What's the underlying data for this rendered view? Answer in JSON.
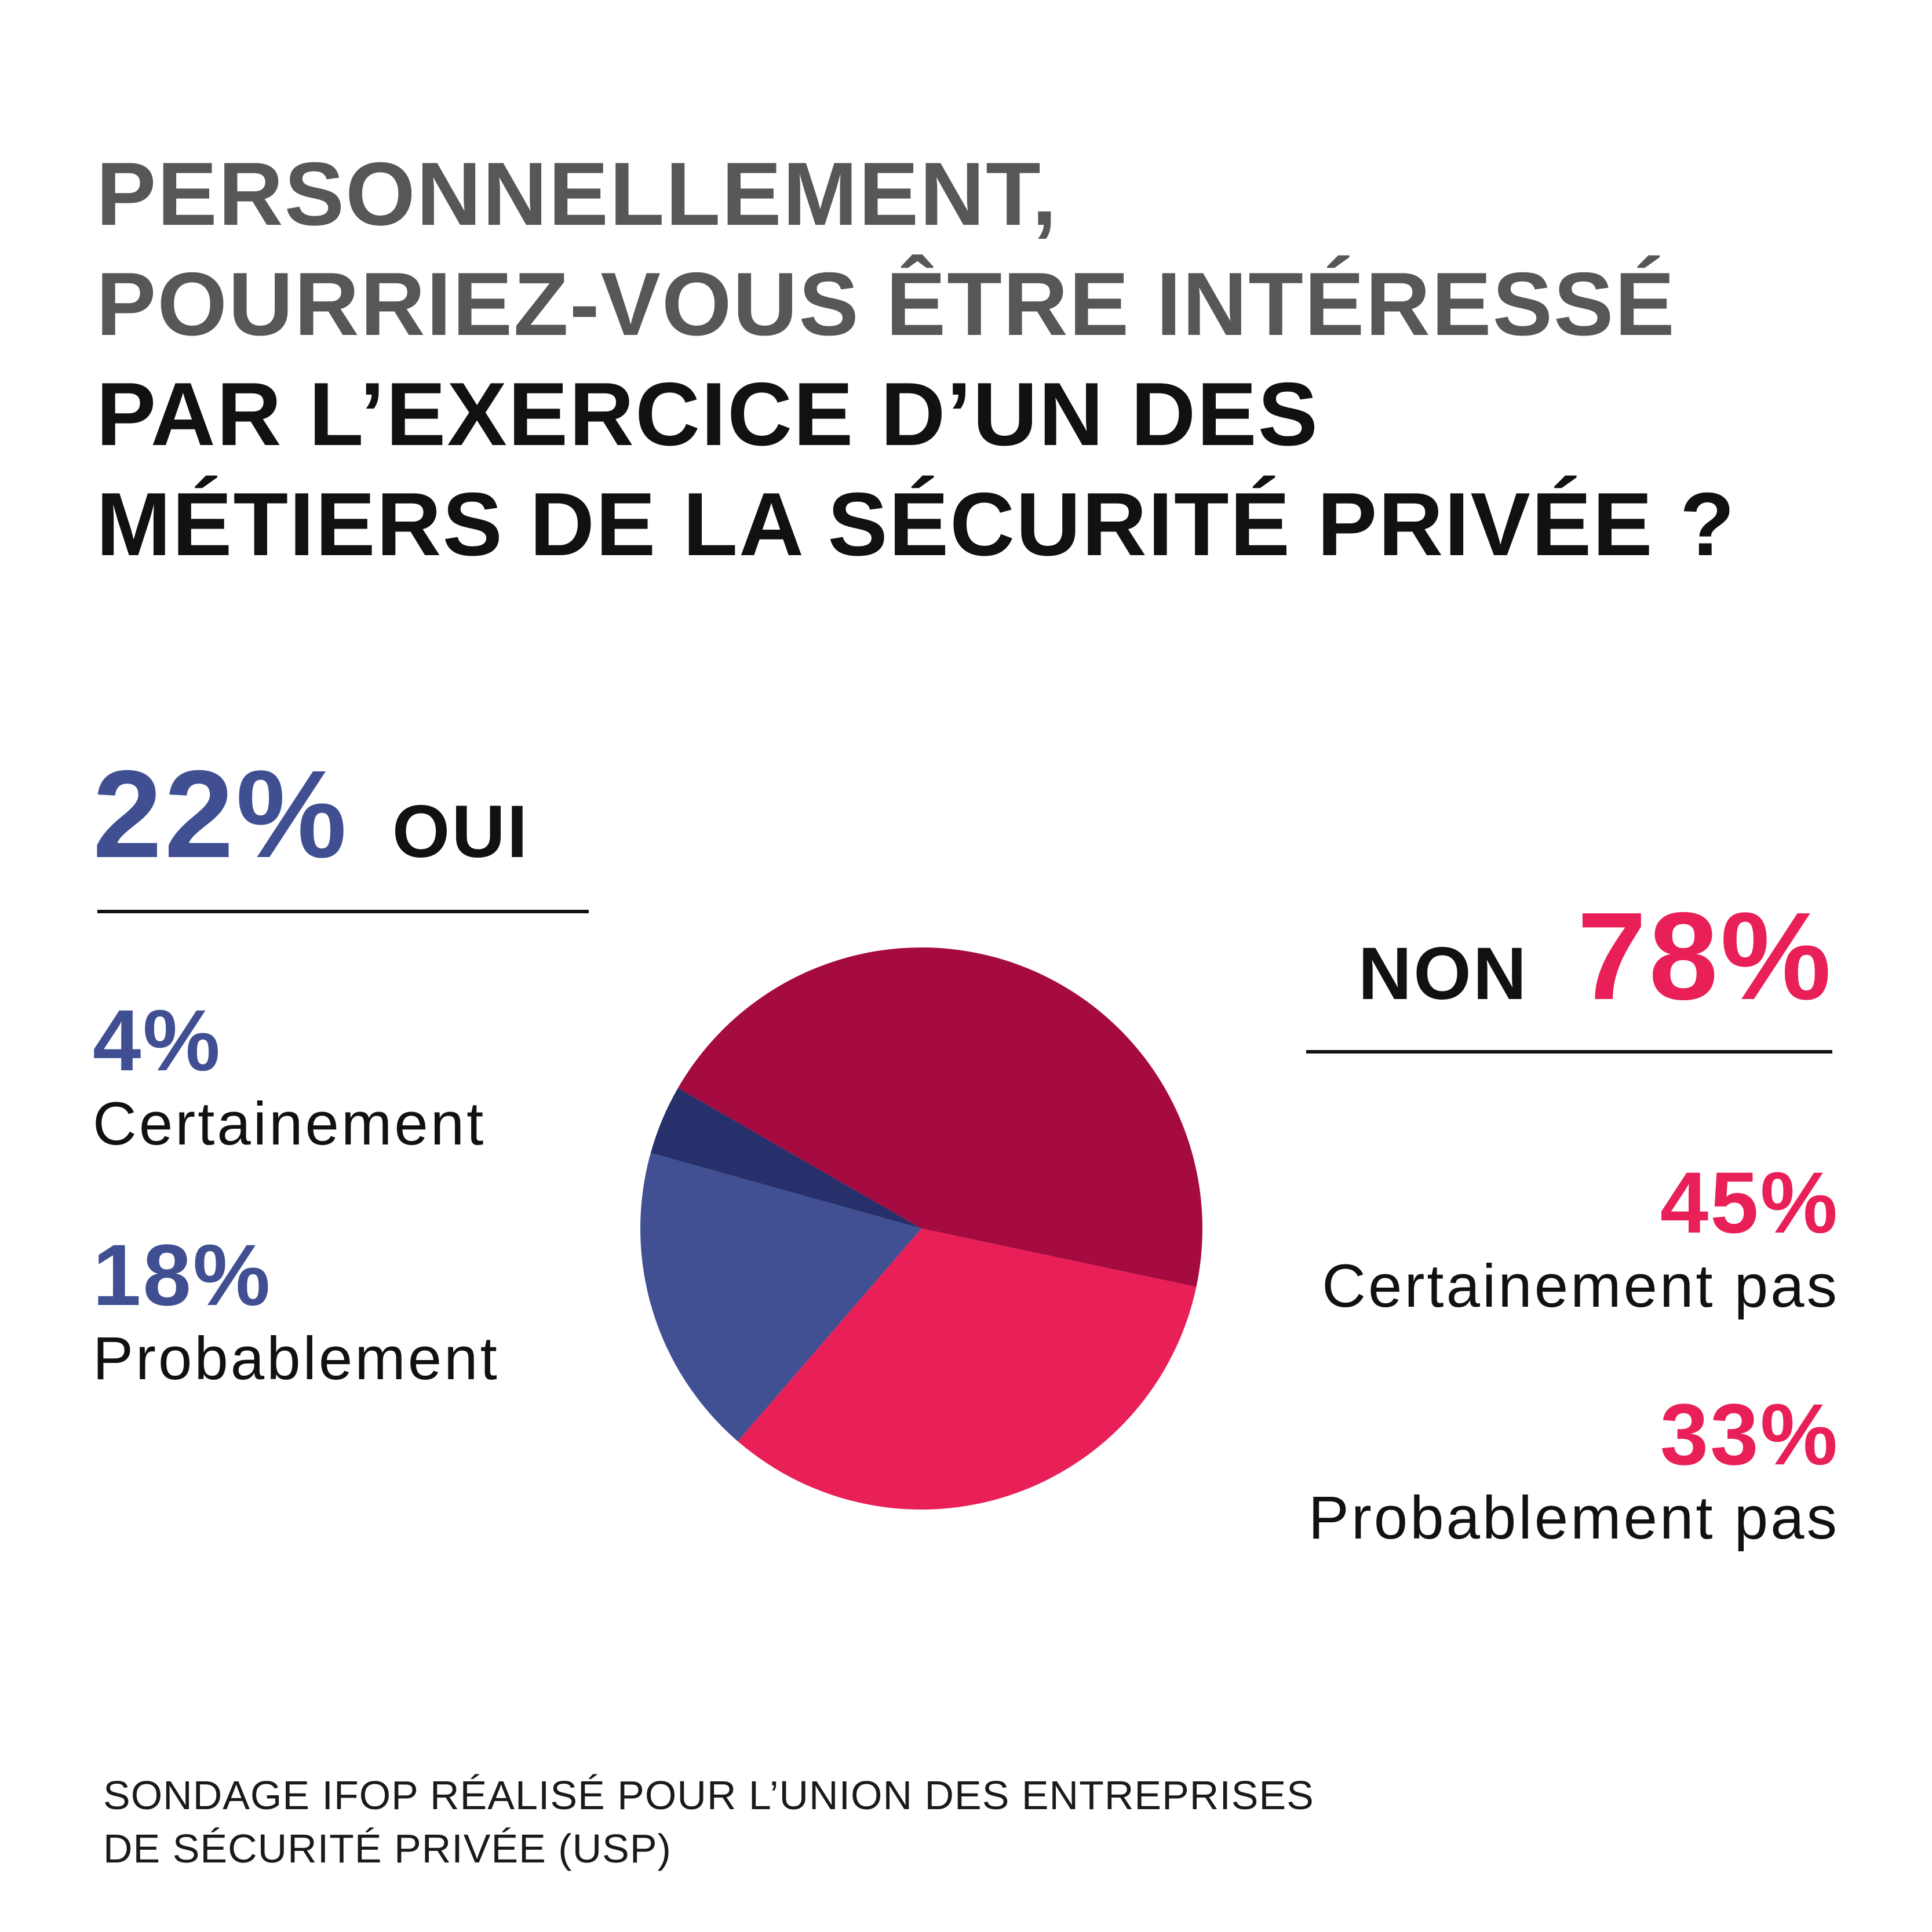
{
  "title": {
    "line1": "PERSONNELLEMENT,",
    "line2": "POURRIEZ-VOUS ÊTRE INTÉRESSÉ",
    "line3": "PAR L’EXERCICE D’UN DES",
    "line4": "MÉTIERS DE LA SÉCURITÉ PRIVÉE ?"
  },
  "oui": {
    "percent": "22%",
    "label": "OUI",
    "color": "#3f4f92",
    "items": [
      {
        "percent": "4%",
        "label": "Certainement"
      },
      {
        "percent": "18%",
        "label": "Probablement"
      }
    ]
  },
  "non": {
    "percent": "78%",
    "label": "NON",
    "color": "#e91f57",
    "items": [
      {
        "percent": "45%",
        "label": "Certainement pas"
      },
      {
        "percent": "33%",
        "label": "Probablement pas"
      }
    ]
  },
  "source": {
    "line1": "SONDAGE IFOP RÉALISÉ POUR L’UNION DES ENTREPRISES",
    "line2": "DE SÉCURITÉ PRIVÉE (USP)"
  },
  "chart_data": {
    "type": "pie",
    "slices": [
      {
        "label": "Certainement pas",
        "value": 45,
        "color": "#a50b40"
      },
      {
        "label": "Probablement pas",
        "value": 33,
        "color": "#e91f57"
      },
      {
        "label": "Probablement",
        "value": 18,
        "color": "#405093"
      },
      {
        "label": "Certainement",
        "value": 4,
        "color": "#27306b"
      }
    ],
    "start_direction": "10 o'clock",
    "order": "clockwise"
  }
}
